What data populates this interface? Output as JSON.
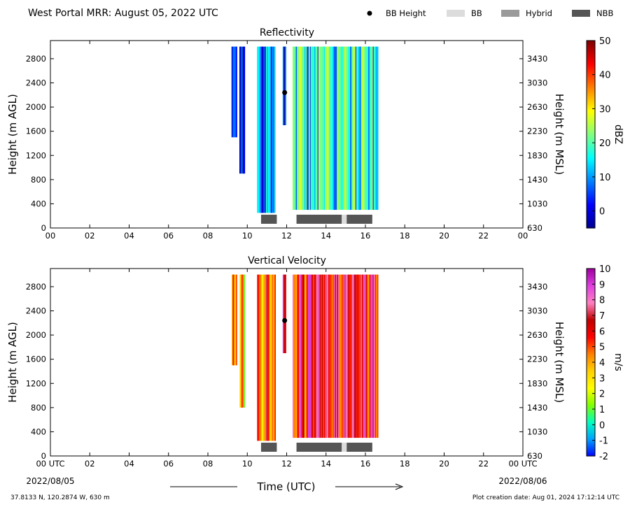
{
  "header": {
    "title": "West Portal MRR:  August 05, 2022 UTC",
    "legend": [
      {
        "label": "BB Height",
        "kind": "dot",
        "color": "#000000"
      },
      {
        "label": "BB",
        "kind": "box",
        "color": "#dcdcdc"
      },
      {
        "label": "Hybrid",
        "kind": "box",
        "color": "#9a9a9a"
      },
      {
        "label": "NBB",
        "kind": "box",
        "color": "#555555"
      }
    ]
  },
  "footer": {
    "location": "37.8133 N, 120.2874 W, 630 m",
    "creation": "Plot creation date: Aug 01, 2024 17:12:14 UTC",
    "xlabel": "Time (UTC)",
    "start_date": "2022/08/05",
    "end_date": "2022/08/06"
  },
  "chart_data": [
    {
      "type": "heatmap",
      "title": "Reflectivity",
      "ylabel": "Height (m AGL)",
      "ylabel_right": "Height (m MSL)",
      "xlabel": "Time (UTC)",
      "x_ticks": [
        "00",
        "02",
        "04",
        "06",
        "08",
        "10",
        "12",
        "14",
        "16",
        "18",
        "20",
        "22",
        "00"
      ],
      "xlim": [
        0,
        24
      ],
      "ylim": [
        0,
        3100
      ],
      "y_ticks": [
        0,
        400,
        800,
        1200,
        1600,
        2000,
        2400,
        2800
      ],
      "y_ticks_right": [
        630,
        1030,
        1430,
        1830,
        2230,
        2630,
        3030,
        3430
      ],
      "colorbar": {
        "label": "dBZ",
        "range": [
          -5,
          50
        ],
        "ticks": [
          0,
          10,
          20,
          30,
          40,
          50
        ],
        "colormap": [
          "#00008f",
          "#0000ff",
          "#0080ff",
          "#00ffff",
          "#80ff80",
          "#ffff00",
          "#ff8000",
          "#ff0000",
          "#800000"
        ]
      },
      "bright_band_height": {
        "time": 11.9,
        "height": 2240
      },
      "bb_types": [
        {
          "type": "NBB",
          "start": 10.7,
          "end": 11.5
        },
        {
          "type": "NBB",
          "start": 12.5,
          "end": 14.8
        },
        {
          "type": "BB",
          "start": 14.8,
          "end": 15.05
        },
        {
          "type": "NBB",
          "start": 15.05,
          "end": 16.35
        }
      ],
      "echo_periods": [
        {
          "start": 9.2,
          "end": 9.45,
          "top": 3000,
          "bottom": 1500,
          "mean": 3
        },
        {
          "start": 9.6,
          "end": 9.85,
          "top": 3000,
          "bottom": 900,
          "mean": 3
        },
        {
          "start": 10.5,
          "end": 11.4,
          "top": 3000,
          "bottom": 250,
          "mean": 11
        },
        {
          "start": 11.8,
          "end": 11.95,
          "top": 3000,
          "bottom": 1700,
          "mean": 8
        },
        {
          "start": 12.3,
          "end": 16.6,
          "top": 3000,
          "bottom": 300,
          "mean": 21
        }
      ]
    },
    {
      "type": "heatmap",
      "title": "Vertical Velocity",
      "ylabel": "Height (m AGL)",
      "ylabel_right": "Height (m MSL)",
      "xlabel": "Time (UTC)",
      "x_ticks": [
        "00 UTC",
        "02",
        "04",
        "06",
        "08",
        "10",
        "12",
        "14",
        "16",
        "18",
        "20",
        "22",
        "00 UTC"
      ],
      "xlim": [
        0,
        24
      ],
      "ylim": [
        0,
        3100
      ],
      "y_ticks": [
        0,
        400,
        800,
        1200,
        1600,
        2000,
        2400,
        2800
      ],
      "y_ticks_right": [
        630,
        1030,
        1430,
        1830,
        2230,
        2630,
        3030,
        3430
      ],
      "colorbar": {
        "label": "m/s",
        "range": [
          -2,
          10
        ],
        "ticks": [
          -2,
          -1,
          0,
          1,
          2,
          3,
          4,
          5,
          6,
          7,
          8,
          9,
          10
        ],
        "colormap": [
          "#0000ff",
          "#00a0ff",
          "#00ffc0",
          "#80ff00",
          "#ffff00",
          "#ffd000",
          "#ff8000",
          "#ff0000",
          "#c00000",
          "#ff80c0",
          "#e040e0",
          "#a000a0"
        ]
      },
      "bright_band_height": {
        "time": 11.9,
        "height": 2240
      },
      "bb_types": [
        {
          "type": "NBB",
          "start": 10.7,
          "end": 11.5
        },
        {
          "type": "NBB",
          "start": 12.5,
          "end": 14.8
        },
        {
          "type": "BB",
          "start": 14.8,
          "end": 15.05
        },
        {
          "type": "NBB",
          "start": 15.05,
          "end": 16.35
        }
      ],
      "echo_periods": [
        {
          "start": 9.2,
          "end": 9.45,
          "top": 3000,
          "bottom": 1500,
          "mean": 4
        },
        {
          "start": 9.6,
          "end": 9.85,
          "top": 3000,
          "bottom": 800,
          "mean": 3
        },
        {
          "start": 10.5,
          "end": 11.4,
          "top": 3000,
          "bottom": 250,
          "mean": 4.5
        },
        {
          "start": 11.8,
          "end": 11.95,
          "top": 3000,
          "bottom": 1700,
          "mean": 6
        },
        {
          "start": 12.3,
          "end": 16.6,
          "top": 3000,
          "bottom": 300,
          "mean": 6.5
        }
      ]
    }
  ]
}
